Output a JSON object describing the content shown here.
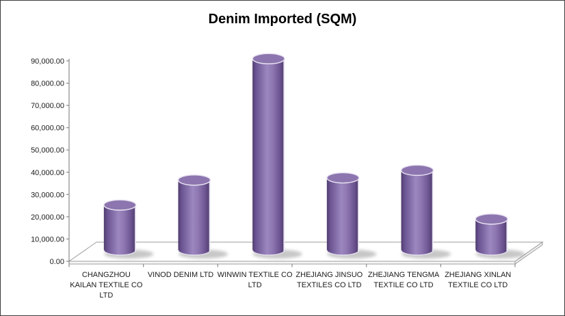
{
  "window": {
    "background_color": "#ffffff",
    "border_color": "#3b3b3b"
  },
  "chart_data": {
    "type": "bar",
    "subtype": "3d-cylinder",
    "title": "Denim Imported (SQM)",
    "categories": [
      "CHANGZHOU KAILAN TEXTILE CO LTD",
      "VINOD DENIM LTD",
      "WINWIN TEXTILE CO LTD",
      "ZHEJIANG JINSUO TEXTILES CO LTD",
      "ZHEJIANG TENGMA TEXTILE CO LTD",
      "ZHEJIANG XINLAN TEXTILE CO LTD"
    ],
    "series": [
      {
        "name": "Denim Imported (SQM)",
        "values": [
          20200,
          31400,
          85900,
          32400,
          35800,
          13900
        ]
      }
    ],
    "xlabel": "",
    "ylabel": "",
    "ylim": [
      0,
      90000
    ],
    "ytick_step": 10000,
    "ytick_labels_top_to_bottom": [
      "90,000.00",
      "80,000.00",
      "70,000.00",
      "60,000.00",
      "50,000.00",
      "40,000.00",
      "30,000.00",
      "20,000.00",
      "10,000.00",
      "0.00"
    ],
    "grid": "off",
    "legend": "none",
    "colors": {
      "bar_fill": "#8064A2",
      "bar_dark_edge": "#564274",
      "bar_light_band": "#9c87bf",
      "bar_rim_highlight": "#e9e4f2",
      "axis_line": "#898989",
      "floor_fill": "#ffffff",
      "floor_edge": "#9b9b9b",
      "shadow": "#8f8f8f",
      "text": "#1a1a1a"
    }
  }
}
